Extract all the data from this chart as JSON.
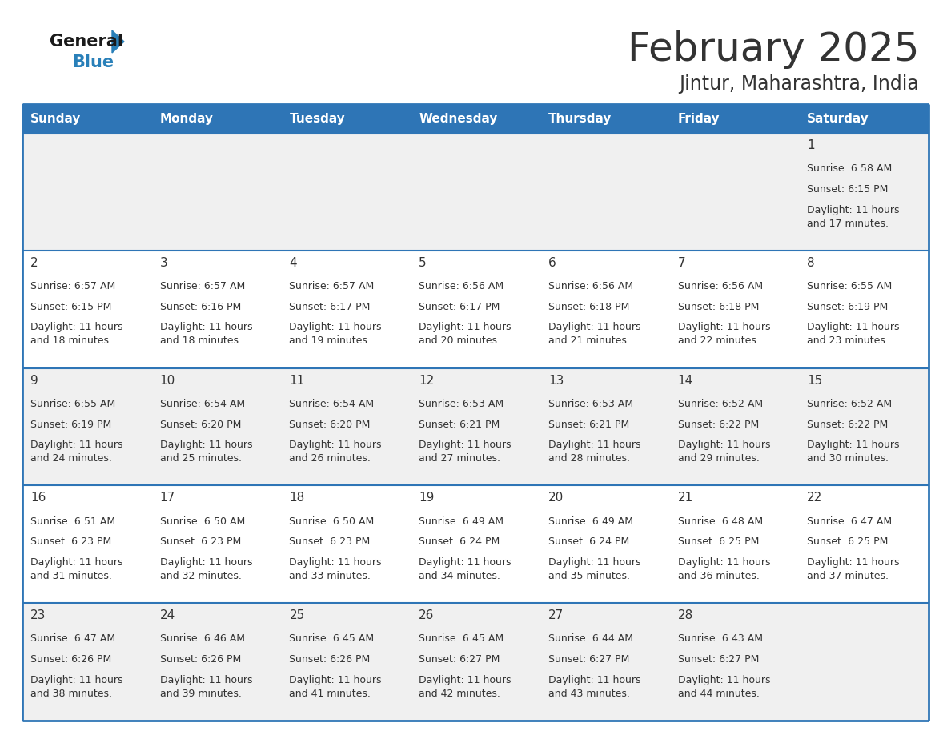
{
  "title": "February 2025",
  "subtitle": "Jintur, Maharashtra, India",
  "header_color": "#2E75B6",
  "header_text_color": "#FFFFFF",
  "days_of_week": [
    "Sunday",
    "Monday",
    "Tuesday",
    "Wednesday",
    "Thursday",
    "Friday",
    "Saturday"
  ],
  "bg_color": "#FFFFFF",
  "alt_row_color": "#F0F0F0",
  "cell_border_color": "#2E75B6",
  "text_color": "#333333",
  "logo_general_color": "#1A1A1A",
  "logo_blue_color": "#2980B9",
  "calendar_data": [
    [
      null,
      null,
      null,
      null,
      null,
      null,
      {
        "day": 1,
        "sunrise": "6:58 AM",
        "sunset": "6:15 PM",
        "daylight": "11 hours\nand 17 minutes."
      }
    ],
    [
      {
        "day": 2,
        "sunrise": "6:57 AM",
        "sunset": "6:15 PM",
        "daylight": "11 hours\nand 18 minutes."
      },
      {
        "day": 3,
        "sunrise": "6:57 AM",
        "sunset": "6:16 PM",
        "daylight": "11 hours\nand 18 minutes."
      },
      {
        "day": 4,
        "sunrise": "6:57 AM",
        "sunset": "6:17 PM",
        "daylight": "11 hours\nand 19 minutes."
      },
      {
        "day": 5,
        "sunrise": "6:56 AM",
        "sunset": "6:17 PM",
        "daylight": "11 hours\nand 20 minutes."
      },
      {
        "day": 6,
        "sunrise": "6:56 AM",
        "sunset": "6:18 PM",
        "daylight": "11 hours\nand 21 minutes."
      },
      {
        "day": 7,
        "sunrise": "6:56 AM",
        "sunset": "6:18 PM",
        "daylight": "11 hours\nand 22 minutes."
      },
      {
        "day": 8,
        "sunrise": "6:55 AM",
        "sunset": "6:19 PM",
        "daylight": "11 hours\nand 23 minutes."
      }
    ],
    [
      {
        "day": 9,
        "sunrise": "6:55 AM",
        "sunset": "6:19 PM",
        "daylight": "11 hours\nand 24 minutes."
      },
      {
        "day": 10,
        "sunrise": "6:54 AM",
        "sunset": "6:20 PM",
        "daylight": "11 hours\nand 25 minutes."
      },
      {
        "day": 11,
        "sunrise": "6:54 AM",
        "sunset": "6:20 PM",
        "daylight": "11 hours\nand 26 minutes."
      },
      {
        "day": 12,
        "sunrise": "6:53 AM",
        "sunset": "6:21 PM",
        "daylight": "11 hours\nand 27 minutes."
      },
      {
        "day": 13,
        "sunrise": "6:53 AM",
        "sunset": "6:21 PM",
        "daylight": "11 hours\nand 28 minutes."
      },
      {
        "day": 14,
        "sunrise": "6:52 AM",
        "sunset": "6:22 PM",
        "daylight": "11 hours\nand 29 minutes."
      },
      {
        "day": 15,
        "sunrise": "6:52 AM",
        "sunset": "6:22 PM",
        "daylight": "11 hours\nand 30 minutes."
      }
    ],
    [
      {
        "day": 16,
        "sunrise": "6:51 AM",
        "sunset": "6:23 PM",
        "daylight": "11 hours\nand 31 minutes."
      },
      {
        "day": 17,
        "sunrise": "6:50 AM",
        "sunset": "6:23 PM",
        "daylight": "11 hours\nand 32 minutes."
      },
      {
        "day": 18,
        "sunrise": "6:50 AM",
        "sunset": "6:23 PM",
        "daylight": "11 hours\nand 33 minutes."
      },
      {
        "day": 19,
        "sunrise": "6:49 AM",
        "sunset": "6:24 PM",
        "daylight": "11 hours\nand 34 minutes."
      },
      {
        "day": 20,
        "sunrise": "6:49 AM",
        "sunset": "6:24 PM",
        "daylight": "11 hours\nand 35 minutes."
      },
      {
        "day": 21,
        "sunrise": "6:48 AM",
        "sunset": "6:25 PM",
        "daylight": "11 hours\nand 36 minutes."
      },
      {
        "day": 22,
        "sunrise": "6:47 AM",
        "sunset": "6:25 PM",
        "daylight": "11 hours\nand 37 minutes."
      }
    ],
    [
      {
        "day": 23,
        "sunrise": "6:47 AM",
        "sunset": "6:26 PM",
        "daylight": "11 hours\nand 38 minutes."
      },
      {
        "day": 24,
        "sunrise": "6:46 AM",
        "sunset": "6:26 PM",
        "daylight": "11 hours\nand 39 minutes."
      },
      {
        "day": 25,
        "sunrise": "6:45 AM",
        "sunset": "6:26 PM",
        "daylight": "11 hours\nand 41 minutes."
      },
      {
        "day": 26,
        "sunrise": "6:45 AM",
        "sunset": "6:27 PM",
        "daylight": "11 hours\nand 42 minutes."
      },
      {
        "day": 27,
        "sunrise": "6:44 AM",
        "sunset": "6:27 PM",
        "daylight": "11 hours\nand 43 minutes."
      },
      {
        "day": 28,
        "sunrise": "6:43 AM",
        "sunset": "6:27 PM",
        "daylight": "11 hours\nand 44 minutes."
      },
      null
    ]
  ]
}
